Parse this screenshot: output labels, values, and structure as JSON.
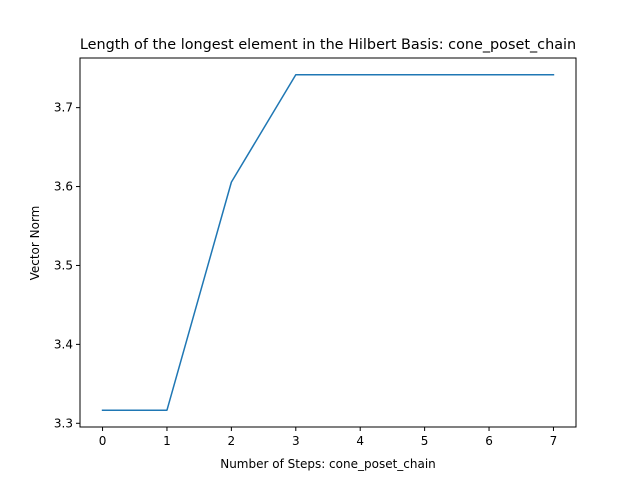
{
  "chart_data": {
    "type": "line",
    "title": "Length of the longest element in the Hilbert Basis: cone_poset_chain",
    "xlabel": "Number of Steps: cone_poset_chain",
    "ylabel": "Vector Norm",
    "x": [
      0,
      1,
      2,
      3,
      4,
      5,
      6,
      7
    ],
    "series": [
      {
        "values": [
          3.3166,
          3.3166,
          3.6056,
          3.7417,
          3.7417,
          3.7417,
          3.7417,
          3.7417
        ],
        "color": "#1f77b4"
      }
    ],
    "xlim": [
      -0.35,
      7.35
    ],
    "ylim": [
      3.2953,
      3.7629
    ],
    "x_ticks": [
      0,
      1,
      2,
      3,
      4,
      5,
      6,
      7
    ],
    "x_tick_labels": [
      "0",
      "1",
      "2",
      "3",
      "4",
      "5",
      "6",
      "7"
    ],
    "y_ticks": [
      3.3,
      3.4,
      3.5,
      3.6,
      3.7
    ],
    "y_tick_labels": [
      "3.3",
      "3.4",
      "3.5",
      "3.6",
      "3.7"
    ],
    "grid": false,
    "legend": "none"
  }
}
